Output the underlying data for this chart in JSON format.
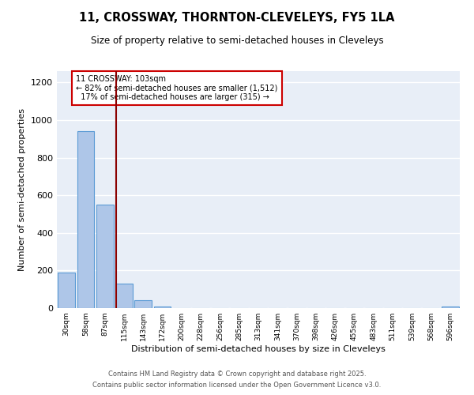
{
  "title": "11, CROSSWAY, THORNTON-CLEVELEYS, FY5 1LA",
  "subtitle": "Size of property relative to semi-detached houses in Cleveleys",
  "xlabel": "Distribution of semi-detached houses by size in Cleveleys",
  "ylabel": "Number of semi-detached properties",
  "categories": [
    "30sqm",
    "58sqm",
    "87sqm",
    "115sqm",
    "143sqm",
    "172sqm",
    "200sqm",
    "228sqm",
    "256sqm",
    "285sqm",
    "313sqm",
    "341sqm",
    "370sqm",
    "398sqm",
    "426sqm",
    "455sqm",
    "483sqm",
    "511sqm",
    "539sqm",
    "568sqm",
    "596sqm"
  ],
  "values": [
    190,
    940,
    550,
    130,
    40,
    10,
    0,
    0,
    0,
    0,
    0,
    0,
    0,
    0,
    0,
    0,
    0,
    0,
    0,
    0,
    10
  ],
  "bar_color": "#aec6e8",
  "bar_edge_color": "#5b9bd5",
  "background_color": "#e8eef7",
  "grid_color": "#ffffff",
  "vline_color": "#8b0000",
  "annotation_text": "11 CROSSWAY: 103sqm\n← 82% of semi-detached houses are smaller (1,512)\n  17% of semi-detached houses are larger (315) →",
  "annotation_box_color": "#ffffff",
  "annotation_box_edge_color": "#cc0000",
  "ylim": [
    0,
    1260
  ],
  "yticks": [
    0,
    200,
    400,
    600,
    800,
    1000,
    1200
  ],
  "footnote1": "Contains HM Land Registry data © Crown copyright and database right 2025.",
  "footnote2": "Contains public sector information licensed under the Open Government Licence v3.0."
}
